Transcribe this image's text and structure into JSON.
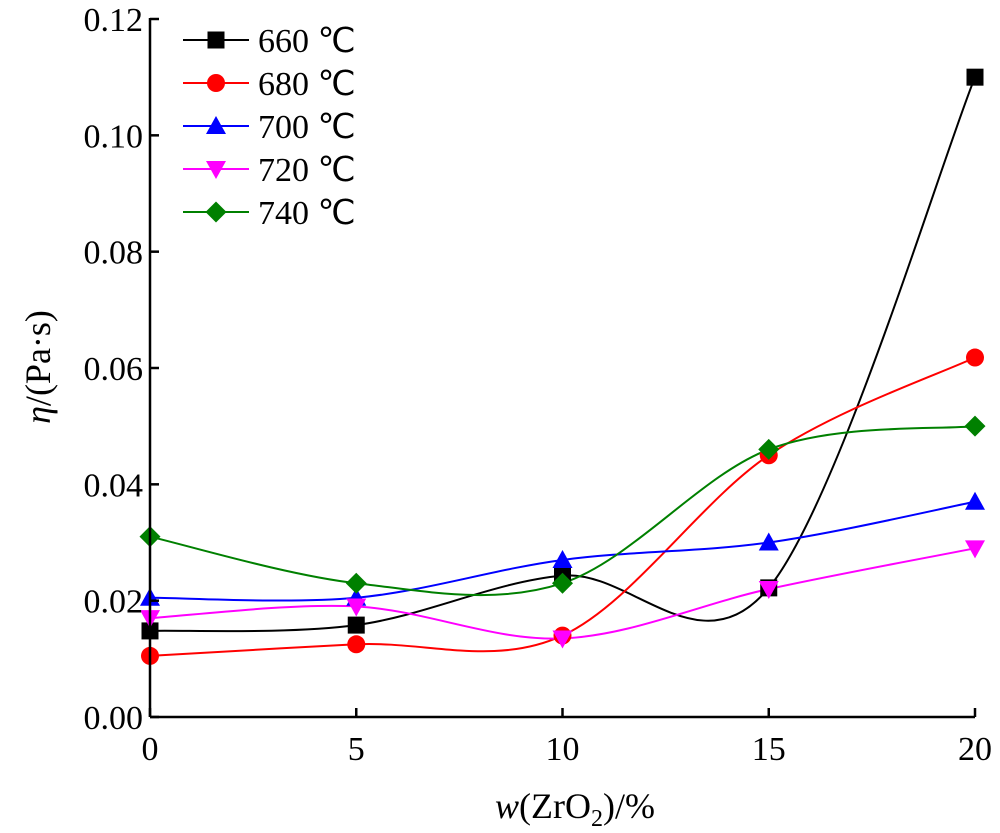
{
  "chart_data": {
    "type": "line",
    "title": "",
    "xlabel": {
      "var": "w",
      "open": "(ZrO",
      "sub": "2",
      "close": ")/%"
    },
    "ylabel": {
      "var": "η",
      "rest": "/(Pa·s)"
    },
    "x": [
      0,
      5,
      10,
      15,
      20
    ],
    "xlim": [
      0,
      20
    ],
    "ylim": [
      0,
      0.12
    ],
    "xticks": [
      0,
      5,
      10,
      15,
      20
    ],
    "yticks": [
      0.0,
      0.02,
      0.04,
      0.06,
      0.08,
      0.1,
      0.12
    ],
    "xtick_labels": [
      "0",
      "5",
      "10",
      "15",
      "20"
    ],
    "ytick_labels": [
      "0.00",
      "0.02",
      "0.04",
      "0.06",
      "0.08",
      "0.10",
      "0.12"
    ],
    "grid": false,
    "legend_position": "top-left",
    "series": [
      {
        "name": "660 ℃",
        "color": "#000000",
        "marker": "square",
        "values": [
          0.0148,
          0.0158,
          0.0243,
          0.0222,
          0.11
        ]
      },
      {
        "name": "680 ℃",
        "color": "#ff0000",
        "marker": "circle",
        "values": [
          0.0105,
          0.0125,
          0.014,
          0.045,
          0.0618
        ]
      },
      {
        "name": "700 ℃",
        "color": "#0000ff",
        "marker": "triangle-up",
        "values": [
          0.0205,
          0.0205,
          0.027,
          0.03,
          0.037
        ]
      },
      {
        "name": "720 ℃",
        "color": "#ff00ff",
        "marker": "triangle-down",
        "values": [
          0.017,
          0.019,
          0.0135,
          0.022,
          0.029
        ]
      },
      {
        "name": "740 ℃",
        "color": "#008000",
        "marker": "diamond",
        "values": [
          0.031,
          0.023,
          0.023,
          0.046,
          0.05
        ]
      }
    ]
  }
}
